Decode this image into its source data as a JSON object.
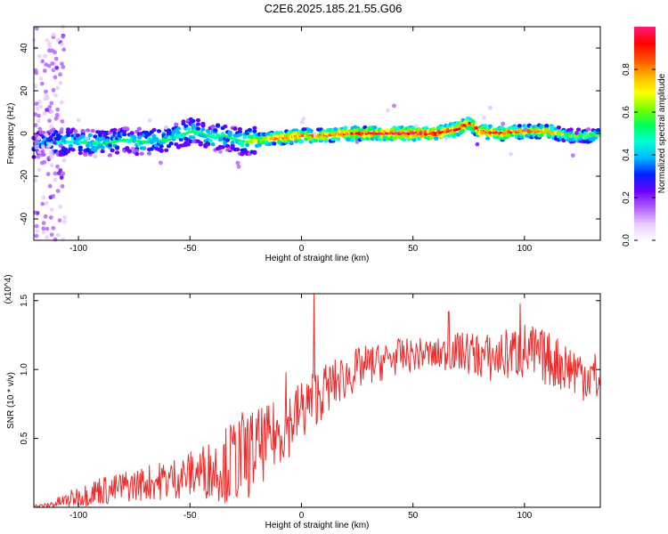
{
  "title": "C2E6.2025.185.21.55.G06",
  "colors": {
    "snr_line": "#ee2b2b",
    "background": "#ffffff",
    "axis": "#000000",
    "ridge_core": "#e8203f"
  },
  "chart_data": [
    {
      "type": "heatmap",
      "xlabel": "Height of straight line (km)",
      "ylabel": "Frequency (Hz)",
      "xlim": [
        -120,
        134
      ],
      "ylim": [
        -50,
        50
      ],
      "xticks": [
        -100,
        -50,
        0,
        50,
        100
      ],
      "yticks": [
        -40,
        -20,
        0,
        20,
        40
      ],
      "grid": false,
      "colorbar": {
        "label": "Normalized spectral amplitude",
        "range": [
          0,
          1
        ],
        "ticks": [
          "0.0",
          "0.2",
          "0.4",
          "0.6",
          "0.8"
        ],
        "colormap": [
          "#ffffff",
          "#e9c9ff",
          "#b25cff",
          "#6a00ff",
          "#0022ff",
          "#00b7ff",
          "#00ffd5",
          "#00ff5a",
          "#7cff00",
          "#ffff00",
          "#ffb300",
          "#ff5000",
          "#ff0000",
          "#ff1a7a"
        ]
      },
      "ridge": {
        "x": [
          -120,
          -110,
          -100,
          -90,
          -80,
          -70,
          -60,
          -50,
          -45,
          -40,
          -35,
          -30,
          -25,
          -20,
          -10,
          0,
          10,
          20,
          30,
          40,
          50,
          60,
          70,
          75,
          80,
          90,
          100,
          110,
          120,
          134
        ],
        "freq": [
          -5,
          -4,
          -4,
          -5,
          -3,
          -4,
          -3,
          1,
          0,
          -2,
          -1,
          -3,
          -4,
          -3,
          -2,
          -1,
          -1,
          0,
          0,
          0,
          0,
          0,
          2,
          5,
          1,
          0,
          1,
          1,
          -1,
          -1
        ],
        "amplitude": [
          0.35,
          0.4,
          0.45,
          0.45,
          0.45,
          0.45,
          0.45,
          0.5,
          0.45,
          0.45,
          0.45,
          0.45,
          0.55,
          0.7,
          0.8,
          0.8,
          0.8,
          0.85,
          0.9,
          0.95,
          0.95,
          0.9,
          0.9,
          0.85,
          0.85,
          0.85,
          0.8,
          0.75,
          0.6,
          0.55
        ]
      }
    },
    {
      "type": "line",
      "xlabel": "Height of straight line (km)",
      "ylabel": "SNR (10 * v/v)",
      "y_multiplier": "(x10^4)",
      "xlim": [
        -120,
        134
      ],
      "ylim": [
        0,
        1.55
      ],
      "xticks": [
        -100,
        -50,
        0,
        50,
        100
      ],
      "yticks": [
        "0.5",
        "1.0",
        "1.5"
      ],
      "grid": false,
      "series": [
        {
          "x": [
            -120,
            -115,
            -110,
            -105,
            -100,
            -95,
            -90,
            -85,
            -80,
            -75,
            -70,
            -65,
            -60,
            -55,
            -50,
            -45,
            -40,
            -35,
            -30,
            -25,
            -20,
            -15,
            -10,
            -5,
            0,
            5,
            10,
            15,
            20,
            25,
            30,
            35,
            40,
            45,
            50,
            55,
            60,
            65,
            70,
            75,
            80,
            85,
            90,
            95,
            100,
            105,
            110,
            115,
            120,
            125,
            130,
            134
          ],
          "y": [
            0.01,
            0.01,
            0.03,
            0.05,
            0.08,
            0.1,
            0.13,
            0.12,
            0.15,
            0.16,
            0.18,
            0.19,
            0.2,
            0.22,
            0.24,
            0.26,
            0.28,
            0.3,
            0.34,
            0.38,
            0.42,
            0.48,
            0.55,
            0.62,
            0.7,
            0.78,
            0.85,
            0.9,
            0.95,
            1.0,
            1.03,
            1.05,
            1.08,
            1.1,
            1.1,
            1.12,
            1.1,
            1.12,
            1.13,
            1.12,
            1.1,
            1.08,
            1.1,
            1.12,
            1.13,
            1.1,
            1.08,
            1.05,
            1.02,
            0.98,
            0.95,
            0.92
          ],
          "spread": [
            0.01,
            0.02,
            0.04,
            0.06,
            0.08,
            0.09,
            0.11,
            0.11,
            0.12,
            0.12,
            0.13,
            0.14,
            0.15,
            0.16,
            0.17,
            0.2,
            0.22,
            0.27,
            0.33,
            0.34,
            0.3,
            0.26,
            0.25,
            0.25,
            0.24,
            0.22,
            0.2,
            0.18,
            0.17,
            0.16,
            0.15,
            0.14,
            0.14,
            0.13,
            0.12,
            0.12,
            0.12,
            0.13,
            0.14,
            0.16,
            0.17,
            0.18,
            0.19,
            0.2,
            0.22,
            0.22,
            0.2,
            0.2,
            0.2,
            0.2,
            0.2,
            0.2
          ],
          "peaks": [
            {
              "x": 5.5,
              "y": 1.55
            },
            {
              "x": 98,
              "y": 1.48
            },
            {
              "x": 66,
              "y": 1.42
            },
            {
              "x": -26,
              "y": 0.62
            },
            {
              "x": -7,
              "y": 0.98
            }
          ]
        }
      ]
    }
  ]
}
